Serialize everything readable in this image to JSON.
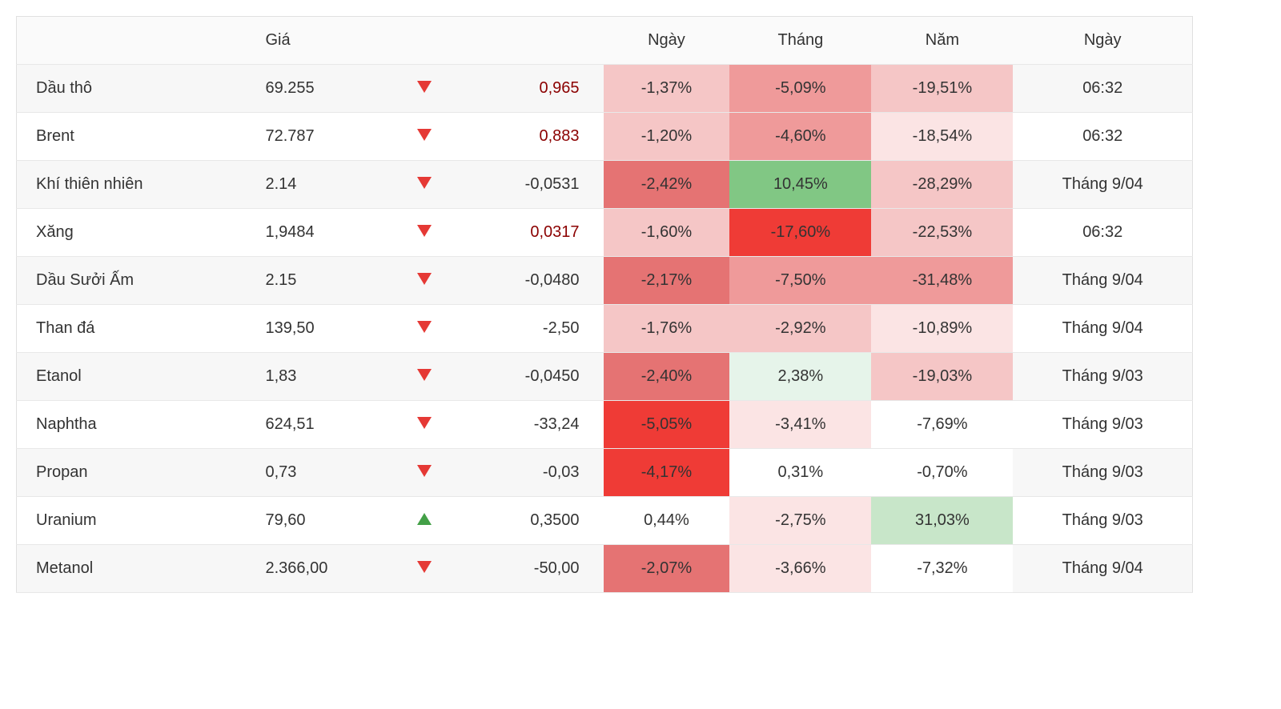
{
  "table": {
    "headers": {
      "name": "",
      "price": "Giá",
      "arrow": "",
      "change": "",
      "day": "Ngày",
      "month": "Tháng",
      "year": "Năm",
      "time": "Ngày"
    },
    "heat_colors": {
      "red_5": "#ef3b36",
      "red_4": "#e57373",
      "red_3": "#ef9a9a",
      "red_2": "#f5c6c6",
      "red_1": "#fbe4e4",
      "neutral": "#ffffff",
      "green_1": "#e6f4ea",
      "green_2": "#c8e6c9",
      "green_3": "#81c784"
    },
    "change_neg_text_color": "#8b0000",
    "fontsize": 20,
    "rows": [
      {
        "name": "Dầu thô",
        "price": "69.255",
        "dir": "down",
        "change": "0,965",
        "change_neg_color": true,
        "day": "-1,37%",
        "day_bg": "#f5c6c6",
        "month": "-5,09%",
        "month_bg": "#ef9a9a",
        "year": "-19,51%",
        "year_bg": "#f5c6c6",
        "time": "06:32"
      },
      {
        "name": "Brent",
        "price": "72.787",
        "dir": "down",
        "change": "0,883",
        "change_neg_color": true,
        "day": "-1,20%",
        "day_bg": "#f5c6c6",
        "month": "-4,60%",
        "month_bg": "#ef9a9a",
        "year": "-18,54%",
        "year_bg": "#fbe4e4",
        "time": "06:32"
      },
      {
        "name": "Khí thiên nhiên",
        "price": "2.14",
        "dir": "down",
        "change": "-0,0531",
        "change_neg_color": false,
        "day": "-2,42%",
        "day_bg": "#e57373",
        "month": "10,45%",
        "month_bg": "#81c784",
        "year": "-28,29%",
        "year_bg": "#f5c6c6",
        "time": "Tháng 9/04"
      },
      {
        "name": "Xăng",
        "price": "1,9484",
        "dir": "down",
        "change": "0,0317",
        "change_neg_color": true,
        "day": "-1,60%",
        "day_bg": "#f5c6c6",
        "month": "-17,60%",
        "month_bg": "#ef3b36",
        "year": "-22,53%",
        "year_bg": "#f5c6c6",
        "time": "06:32"
      },
      {
        "name": "Dầu Sưởi Ấm",
        "price": "2.15",
        "dir": "down",
        "change": "-0,0480",
        "change_neg_color": false,
        "day": "-2,17%",
        "day_bg": "#e57373",
        "month": "-7,50%",
        "month_bg": "#ef9a9a",
        "year": "-31,48%",
        "year_bg": "#ef9a9a",
        "time": "Tháng 9/04"
      },
      {
        "name": "Than đá",
        "price": "139,50",
        "dir": "down",
        "change": "-2,50",
        "change_neg_color": false,
        "day": "-1,76%",
        "day_bg": "#f5c6c6",
        "month": "-2,92%",
        "month_bg": "#f5c6c6",
        "year": "-10,89%",
        "year_bg": "#fbe4e4",
        "time": "Tháng 9/04"
      },
      {
        "name": "Etanol",
        "price": "1,83",
        "dir": "down",
        "change": "-0,0450",
        "change_neg_color": false,
        "day": "-2,40%",
        "day_bg": "#e57373",
        "month": "2,38%",
        "month_bg": "#e6f4ea",
        "year": "-19,03%",
        "year_bg": "#f5c6c6",
        "time": "Tháng 9/03"
      },
      {
        "name": "Naphtha",
        "price": "624,51",
        "dir": "down",
        "change": "-33,24",
        "change_neg_color": false,
        "day": "-5,05%",
        "day_bg": "#ef3b36",
        "month": "-3,41%",
        "month_bg": "#fbe4e4",
        "year": "-7,69%",
        "year_bg": "#ffffff",
        "time": "Tháng 9/03"
      },
      {
        "name": "Propan",
        "price": "0,73",
        "dir": "down",
        "change": "-0,03",
        "change_neg_color": false,
        "day": "-4,17%",
        "day_bg": "#ef3b36",
        "month": "0,31%",
        "month_bg": "#ffffff",
        "year": "-0,70%",
        "year_bg": "#ffffff",
        "time": "Tháng 9/03"
      },
      {
        "name": "Uranium",
        "price": "79,60",
        "dir": "up",
        "change": "0,3500",
        "change_neg_color": false,
        "day": "0,44%",
        "day_bg": "#ffffff",
        "month": "-2,75%",
        "month_bg": "#fbe4e4",
        "year": "31,03%",
        "year_bg": "#c8e6c9",
        "time": "Tháng 9/03"
      },
      {
        "name": "Metanol",
        "price": "2.366,00",
        "dir": "down",
        "change": "-50,00",
        "change_neg_color": false,
        "day": "-2,07%",
        "day_bg": "#e57373",
        "month": "-3,66%",
        "month_bg": "#fbe4e4",
        "year": "-7,32%",
        "year_bg": "#ffffff",
        "time": "Tháng 9/04"
      }
    ]
  }
}
